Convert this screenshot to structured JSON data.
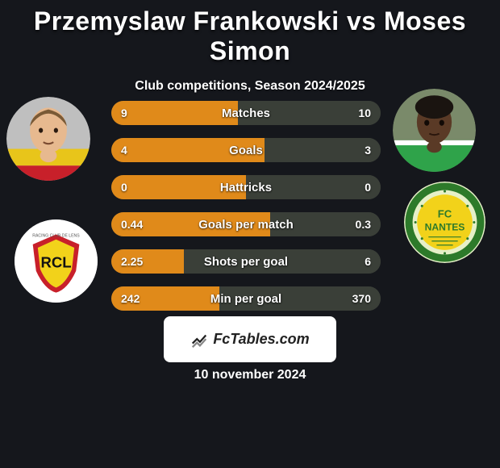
{
  "title": "Przemyslaw Frankowski vs Moses Simon",
  "subtitle": "Club competitions, Season 2024/2025",
  "date": "10 november 2024",
  "badge_text": "FcTables.com",
  "colors": {
    "left_fill": "#e08a1a",
    "right_fill": "#3a3f38",
    "row_bg": "#3a3f38"
  },
  "rows": [
    {
      "label": "Matches",
      "left": "9",
      "right": "10",
      "left_pct": 47
    },
    {
      "label": "Goals",
      "left": "4",
      "right": "3",
      "left_pct": 57
    },
    {
      "label": "Hattricks",
      "left": "0",
      "right": "0",
      "left_pct": 50
    },
    {
      "label": "Goals per match",
      "left": "0.44",
      "right": "0.3",
      "left_pct": 59
    },
    {
      "label": "Shots per goal",
      "left": "2.25",
      "right": "6",
      "left_pct": 27
    },
    {
      "label": "Min per goal",
      "left": "242",
      "right": "370",
      "left_pct": 40
    }
  ],
  "player_left": {
    "skin": "#e7b98f",
    "hair": "#7a5a36",
    "shirt_top": "#e8c51a",
    "shirt_bottom": "#c8202a"
  },
  "player_right": {
    "skin": "#5a3a26",
    "hair": "#1a1410",
    "shirt": "#2fa34a",
    "collar": "#ffffff"
  },
  "club_left": {
    "bg": "#ffffff",
    "shield_outer": "#c8202a",
    "shield_inner": "#f2d21a",
    "text": "RCL"
  },
  "club_right": {
    "bg": "#e6f0c8",
    "ring": "#2d7a2a",
    "inner": "#f2d21a",
    "text_top": "FC",
    "text_bottom": "NANTES"
  }
}
